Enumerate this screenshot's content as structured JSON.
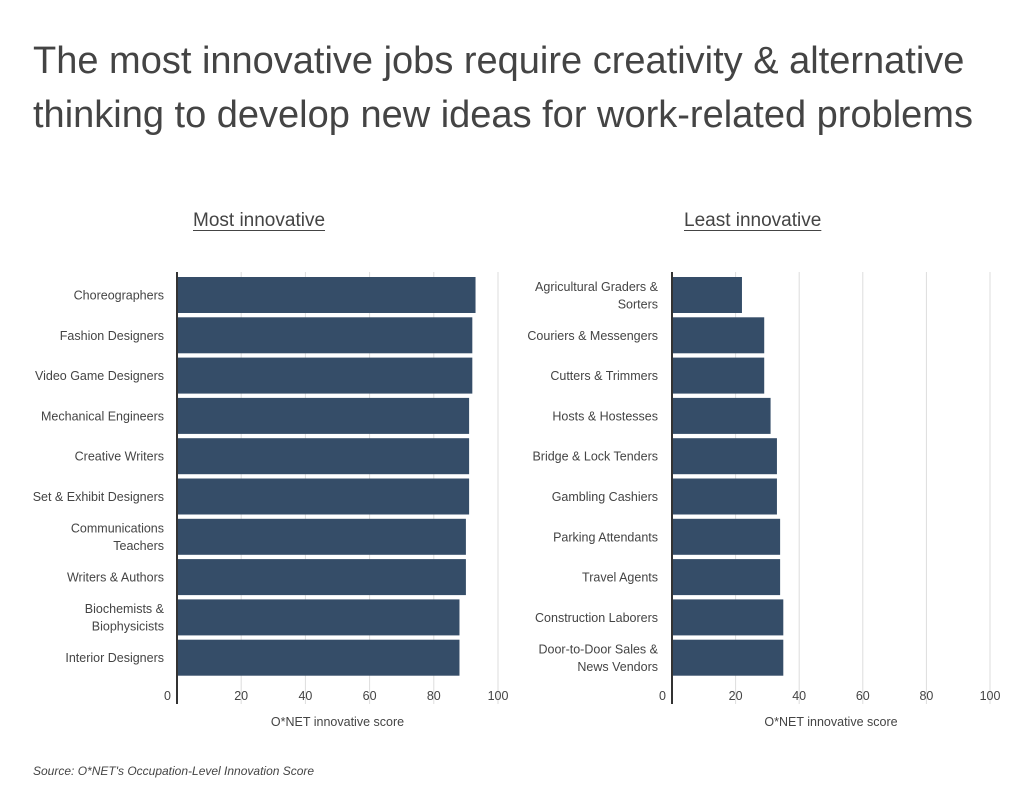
{
  "page": {
    "title": "The most innovative jobs require creativity & alternative thinking to develop new ideas for work-related problems",
    "source": "Source:  O*NET's Occupation-Level Innovation Score"
  },
  "colors": {
    "bar": "#354d68",
    "grid": "#dddddd",
    "axis": "#333333",
    "text": "#444444"
  },
  "chart_data": [
    {
      "type": "bar",
      "orientation": "horizontal",
      "title": "Most innovative",
      "xlabel": "O*NET innovative score",
      "xlim": [
        0,
        100
      ],
      "xticks": [
        0,
        20,
        40,
        60,
        80,
        100
      ],
      "grid": true,
      "categories": [
        [
          "Choreographers"
        ],
        [
          "Fashion Designers"
        ],
        [
          "Video Game Designers"
        ],
        [
          "Mechanical Engineers"
        ],
        [
          "Creative Writers"
        ],
        [
          "Set & Exhibit Designers"
        ],
        [
          "Communications",
          "Teachers"
        ],
        [
          "Writers & Authors"
        ],
        [
          "Biochemists &",
          "Biophysicists"
        ],
        [
          "Interior Designers"
        ]
      ],
      "values": [
        93,
        92,
        92,
        91,
        91,
        91,
        90,
        90,
        88,
        88
      ]
    },
    {
      "type": "bar",
      "orientation": "horizontal",
      "title": "Least innovative",
      "xlabel": "O*NET innovative score",
      "xlim": [
        0,
        100
      ],
      "xticks": [
        0,
        20,
        40,
        60,
        80,
        100
      ],
      "grid": true,
      "categories": [
        [
          "Agricultural Graders &",
          "Sorters"
        ],
        [
          "Couriers & Messengers"
        ],
        [
          "Cutters & Trimmers"
        ],
        [
          "Hosts & Hostesses"
        ],
        [
          "Bridge & Lock Tenders"
        ],
        [
          "Gambling Cashiers"
        ],
        [
          "Parking Attendants"
        ],
        [
          "Travel Agents"
        ],
        [
          "Construction Laborers"
        ],
        [
          "Door-to-Door Sales &",
          "News Vendors"
        ]
      ],
      "values": [
        22,
        29,
        29,
        31,
        33,
        33,
        34,
        34,
        35,
        35
      ]
    }
  ]
}
